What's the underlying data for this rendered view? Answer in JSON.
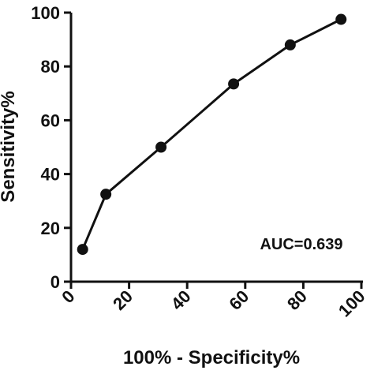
{
  "chart_data": {
    "type": "line",
    "title": "",
    "xlabel": "100% - Specificity%",
    "ylabel": "Sensitivity%",
    "xlim": [
      0,
      100
    ],
    "ylim": [
      0,
      100
    ],
    "x_ticks": [
      "0",
      "20",
      "40",
      "60",
      "80",
      "100"
    ],
    "y_ticks": [
      "0",
      "20",
      "40",
      "60",
      "80",
      "100"
    ],
    "grid": false,
    "legend": "none",
    "annotation": "AUC=0.639",
    "series": [
      {
        "x": [
          4,
          12,
          31,
          56,
          75.5,
          93
        ],
        "y": [
          12,
          32.5,
          50,
          73.5,
          88,
          97.5
        ]
      }
    ],
    "colors": {
      "line": "#111111",
      "marker": "#111111"
    }
  }
}
